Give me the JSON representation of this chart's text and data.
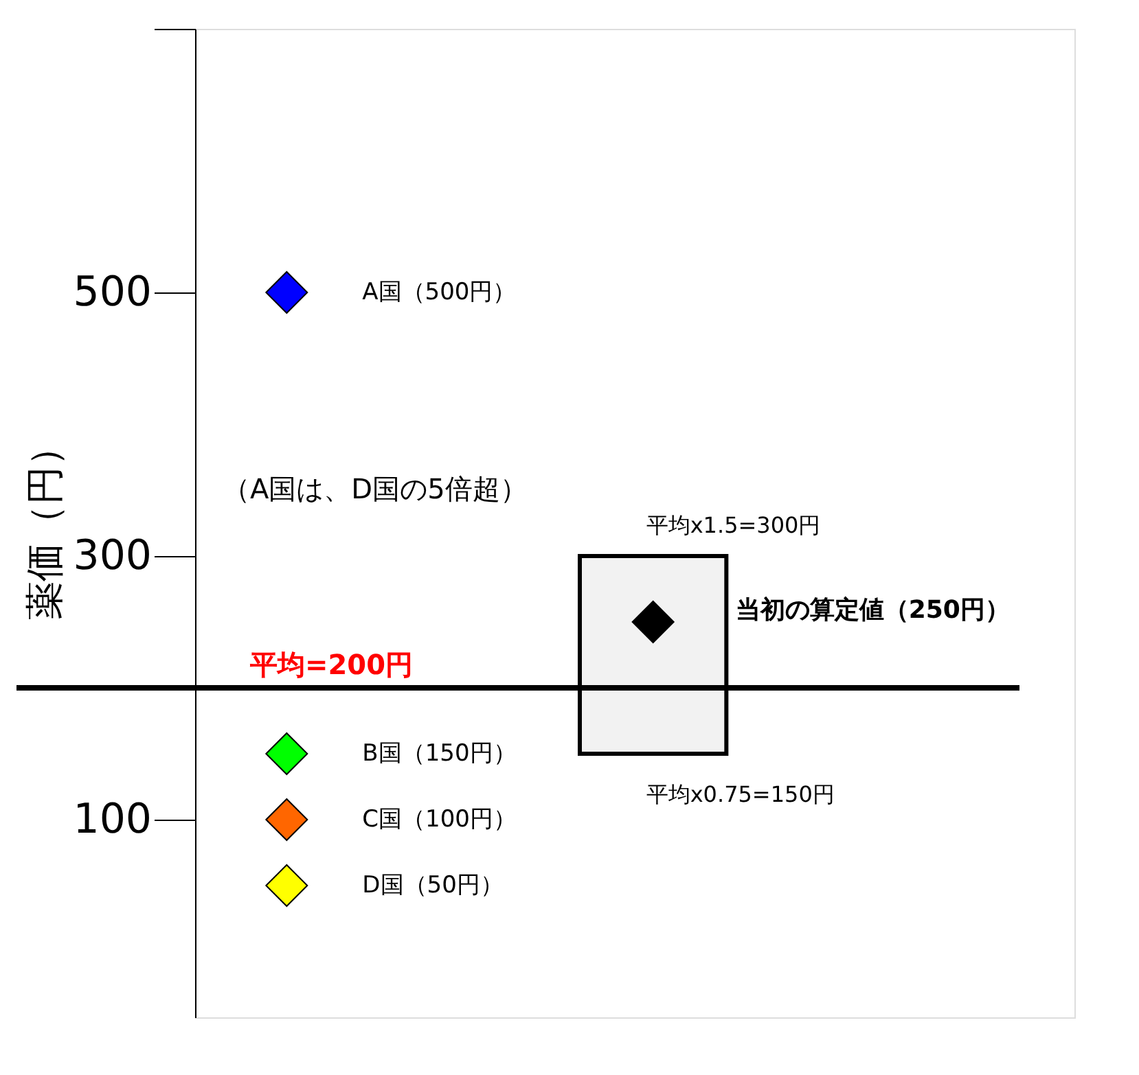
{
  "chart_data": {
    "type": "scatter",
    "ylabel": "薬価（円）",
    "categories": [
      null,
      null
    ],
    "series": [
      {
        "name": "A国（500円）",
        "color": "#0000ff",
        "values": [
          500,
          null
        ]
      },
      {
        "name": "B国（150円）",
        "color": "#00ff00",
        "values": [
          150,
          null
        ]
      },
      {
        "name": "C国（100円）",
        "color": "#ff6600",
        "values": [
          100,
          null
        ]
      },
      {
        "name": "D国（50円）",
        "color": "#ffff00",
        "values": [
          50,
          null
        ]
      },
      {
        "name": "当初の算定値（250円）",
        "color": "#000000",
        "values": [
          null,
          250
        ]
      }
    ],
    "marker": "diamond",
    "ylim": [
      -50,
      700
    ],
    "yticks": [
      100,
      300,
      500,
      {
        "value": 700,
        "label": null
      }
    ],
    "grid": false,
    "legend": false,
    "ref_lines": [
      {
        "axis": "y",
        "value": 200,
        "label": "平均=200円",
        "color": "#000000"
      }
    ],
    "bands": [
      {
        "axis": "y",
        "from": 150,
        "to": 300,
        "color": "#f2f2f2"
      }
    ],
    "annotations": [
      "（A国は、D国の5倍超）",
      "平均x1.5=300円",
      "平均x0.75=150円"
    ]
  }
}
